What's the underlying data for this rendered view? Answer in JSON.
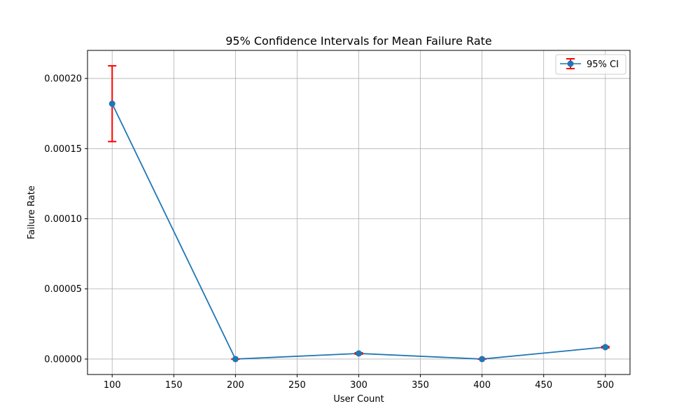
{
  "chart_data": {
    "type": "line",
    "title": "95% Confidence Intervals for Mean Failure Rate",
    "xlabel": "User Count",
    "ylabel": "Failure Rate",
    "xlim": [
      80,
      520
    ],
    "ylim": [
      -1.1e-05,
      0.00022
    ],
    "x_ticks": [
      100,
      150,
      200,
      250,
      300,
      350,
      400,
      450,
      500
    ],
    "x_tick_labels": [
      "100",
      "150",
      "200",
      "250",
      "300",
      "350",
      "400",
      "450",
      "500"
    ],
    "y_ticks": [
      0,
      5e-05,
      0.0001,
      0.00015,
      0.0002
    ],
    "y_tick_labels": [
      "0.00000",
      "0.00005",
      "0.00010",
      "0.00015",
      "0.00020"
    ],
    "grid": true,
    "legend_position": "top-right",
    "series": [
      {
        "name": "95% CI",
        "x": [
          100,
          200,
          300,
          400,
          500
        ],
        "values": [
          0.000182,
          0.0,
          4e-06,
          0.0,
          8.5e-06
        ],
        "ci_lower": [
          0.000155,
          0.0,
          3.5e-06,
          0.0,
          8e-06
        ],
        "ci_upper": [
          0.000209,
          0.0,
          4.5e-06,
          0.0,
          9e-06
        ]
      }
    ],
    "colors": {
      "line": "#1f77b4",
      "marker": "#1f77b4",
      "errorbar": "#ff0000",
      "grid": "#b0b0b0",
      "axis": "#000000"
    }
  }
}
